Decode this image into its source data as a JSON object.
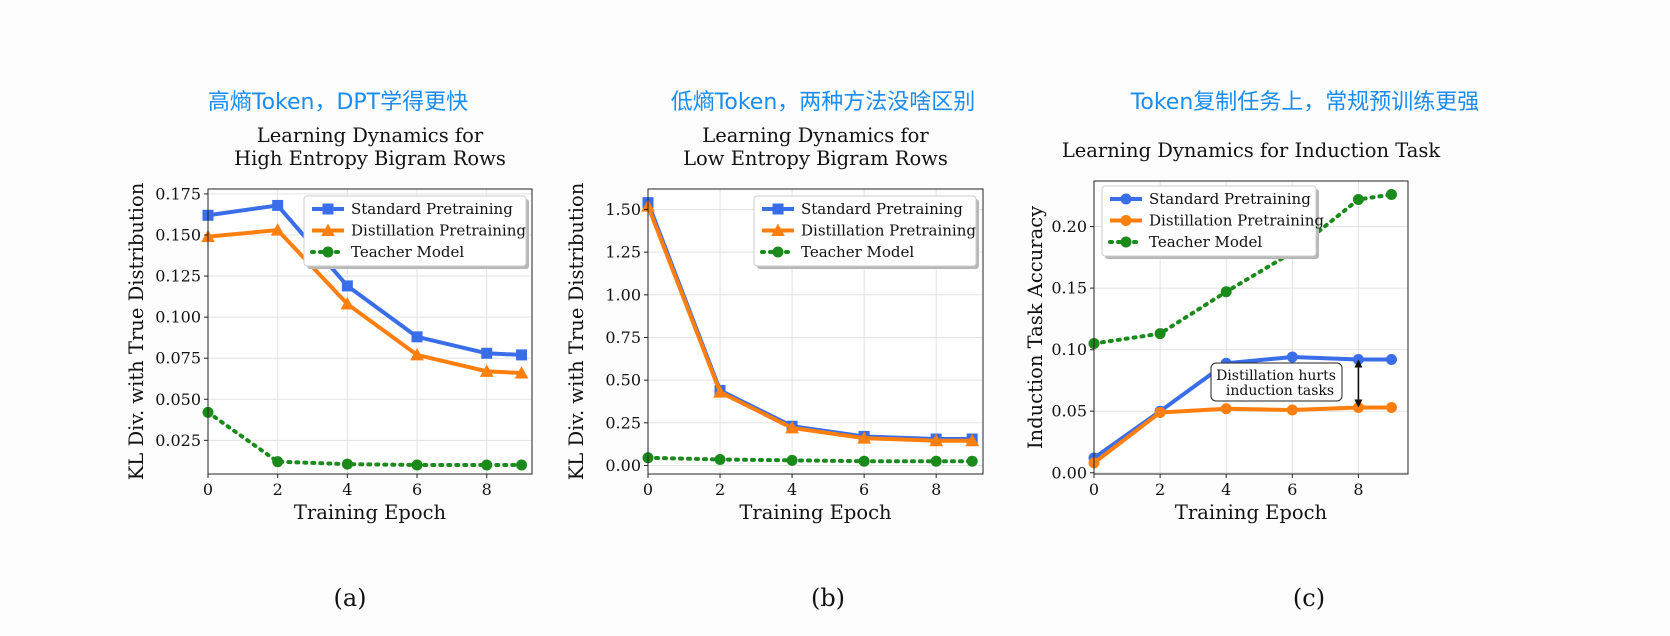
{
  "headings": [
    "高熵Token，DPT学得更快",
    "低熵Token，两种方法没啥区别",
    "Token复制任务上，常规预训练更强"
  ],
  "captions": [
    "(a)",
    "(b)",
    "(c)"
  ],
  "colors": {
    "standard": "#3a6ee8",
    "distill": "#ff7f0e",
    "teacher": "#1a8a1a",
    "heading": "#1a8cf0"
  },
  "chart_data": [
    {
      "type": "line",
      "title": [
        "Learning Dynamics for",
        "High Entropy Bigram Rows"
      ],
      "xlabel": "Training Epoch",
      "ylabel": "KL Div. with True Distribution",
      "xlim": [
        0,
        9.3
      ],
      "ylim": [
        0.0045,
        0.178
      ],
      "xticks": [
        0,
        2,
        4,
        6,
        8
      ],
      "yticks": [
        0.025,
        0.05,
        0.075,
        0.1,
        0.125,
        0.15,
        0.175
      ],
      "ytick_labels": [
        "0.025",
        "0.050",
        "0.075",
        "0.100",
        "0.125",
        "0.150",
        "0.175"
      ],
      "grid": true,
      "legend_position": "top-right",
      "x": [
        0,
        2,
        4,
        6,
        8,
        9
      ],
      "series": [
        {
          "name": "Standard Pretraining",
          "marker": "square",
          "values": [
            0.162,
            0.168,
            0.119,
            0.088,
            0.078,
            0.077
          ]
        },
        {
          "name": "Distillation Pretraining",
          "marker": "triangle",
          "values": [
            0.149,
            0.153,
            0.108,
            0.077,
            0.067,
            0.066
          ]
        },
        {
          "name": "Teacher Model",
          "marker": "circle",
          "dotted": true,
          "values": [
            0.042,
            0.012,
            0.0105,
            0.01,
            0.01,
            0.01
          ]
        }
      ]
    },
    {
      "type": "line",
      "title": [
        "Learning Dynamics for",
        "Low Entropy Bigram Rows"
      ],
      "xlabel": "Training Epoch",
      "ylabel": "KL Div. with True Distribution",
      "xlim": [
        0,
        9.3
      ],
      "ylim": [
        -0.05,
        1.62
      ],
      "xticks": [
        0,
        2,
        4,
        6,
        8
      ],
      "yticks": [
        0,
        0.25,
        0.5,
        0.75,
        1.0,
        1.25,
        1.5
      ],
      "ytick_labels": [
        "0.00",
        "0.25",
        "0.50",
        "0.75",
        "1.00",
        "1.25",
        "1.50"
      ],
      "grid": true,
      "legend_position": "top-right",
      "x": [
        0,
        2,
        4,
        6,
        8,
        9
      ],
      "series": [
        {
          "name": "Standard Pretraining",
          "marker": "square",
          "values": [
            1.54,
            0.44,
            0.23,
            0.17,
            0.155,
            0.155
          ]
        },
        {
          "name": "Distillation Pretraining",
          "marker": "triangle",
          "values": [
            1.52,
            0.43,
            0.22,
            0.16,
            0.145,
            0.145
          ]
        },
        {
          "name": "Teacher Model",
          "marker": "circle",
          "dotted": true,
          "values": [
            0.045,
            0.035,
            0.03,
            0.025,
            0.025,
            0.025
          ]
        }
      ]
    },
    {
      "type": "line",
      "title": [
        "Learning Dynamics for Induction Task"
      ],
      "xlabel": "Training Epoch",
      "ylabel": "Induction Task Accuracy",
      "xlim": [
        0,
        9.5
      ],
      "ylim": [
        -0.001,
        0.237
      ],
      "xticks": [
        0,
        2,
        4,
        6,
        8
      ],
      "yticks": [
        0,
        0.05,
        0.1,
        0.15,
        0.2
      ],
      "ytick_labels": [
        "0.00",
        "0.05",
        "0.10",
        "0.15",
        "0.20"
      ],
      "grid": true,
      "legend_position": "top-left",
      "x": [
        0,
        2,
        4,
        6,
        8,
        9
      ],
      "series": [
        {
          "name": "Standard Pretraining",
          "marker": "circle",
          "values": [
            0.012,
            0.05,
            0.089,
            0.094,
            0.092,
            0.092
          ]
        },
        {
          "name": "Distillation Pretraining",
          "marker": "circle",
          "values": [
            0.008,
            0.049,
            0.052,
            0.051,
            0.053,
            0.053
          ]
        },
        {
          "name": "Teacher Model",
          "marker": "circle",
          "dotted": true,
          "values": [
            0.105,
            0.113,
            0.147,
            0.179,
            0.222,
            0.226
          ]
        }
      ],
      "annotation": {
        "text": [
          "Distillation hurts",
          "induction tasks"
        ],
        "arrow_x": 8,
        "arrow_from": 0.092,
        "arrow_to": 0.053
      }
    }
  ]
}
